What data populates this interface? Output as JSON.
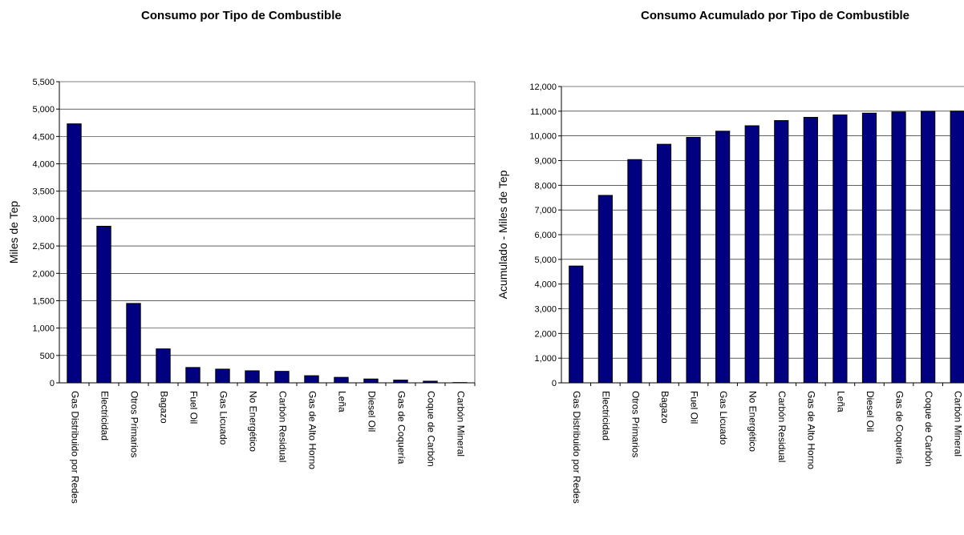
{
  "chart_data": [
    {
      "type": "bar",
      "title": "Consumo por Tipo de Combustible",
      "xlabel": "",
      "ylabel": "Miles de Tep",
      "ylim": [
        0,
        5500
      ],
      "yticks": [
        "0",
        "500",
        "1,000",
        "1,500",
        "2,000",
        "2,500",
        "3,000",
        "3,500",
        "4,000",
        "4,500",
        "5,000",
        "5,500"
      ],
      "categories": [
        "Gas Distribuido por Redes",
        "Electricidad",
        "Otros Primarios",
        "Bagazo",
        "Fuel Oil",
        "Gas Licuado",
        "No Energético",
        "Carbón Residual",
        "Gas de Alto Horno",
        "Leña",
        "Diesel Oil",
        "Gas de Coquería",
        "Coque de Carbón",
        "Carbón Mineral"
      ],
      "values": [
        4730,
        2860,
        1450,
        620,
        280,
        250,
        220,
        210,
        130,
        100,
        70,
        50,
        30,
        5
      ],
      "grid": true,
      "bar_color": "#000080"
    },
    {
      "type": "bar",
      "title": "Consumo Acumulado por Tipo de Combustible",
      "xlabel": "",
      "ylabel": "Acumulado - Miles de Tep",
      "ylim": [
        0,
        12000
      ],
      "yticks": [
        "0",
        "1,000",
        "2,000",
        "3,000",
        "4,000",
        "5,000",
        "6,000",
        "7,000",
        "8,000",
        "9,000",
        "10,000",
        "11,000",
        "12,000"
      ],
      "categories": [
        "Gas Distribuido por Redes",
        "Electricidad",
        "Otros Primarios",
        "Bagazo",
        "Fuel Oil",
        "Gas Licuado",
        "No Energético",
        "Carbón Residual",
        "Gas de Alto Horno",
        "Leña",
        "Diesel Oil",
        "Gas de Coquería",
        "Coque de Carbón",
        "Carbón Mineral"
      ],
      "values": [
        4730,
        7590,
        9040,
        9660,
        9940,
        10190,
        10410,
        10620,
        10750,
        10850,
        10920,
        10970,
        11000,
        11005
      ],
      "grid": true,
      "bar_color": "#000080"
    }
  ]
}
